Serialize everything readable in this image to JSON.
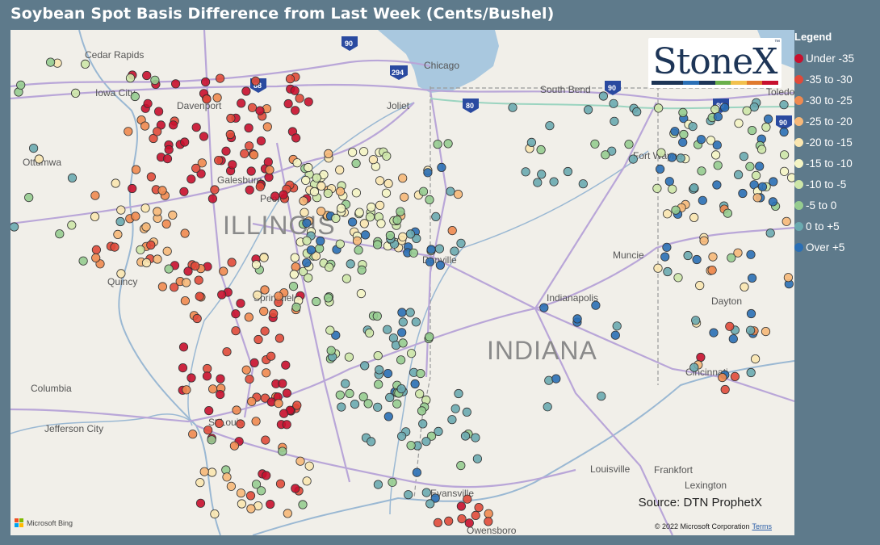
{
  "title": "Soybean Spot Basis Difference from Last Week (Cents/Bushel)",
  "legend": {
    "title": "Legend",
    "items": [
      {
        "label": "Under -35",
        "color": "#c8102e"
      },
      {
        "label": "-35 to -30",
        "color": "#e04a3a"
      },
      {
        "label": "-30 to -25",
        "color": "#ef8a50"
      },
      {
        "label": "-25 to -20",
        "color": "#f6b879"
      },
      {
        "label": "-20 to -15",
        "color": "#fae6b0"
      },
      {
        "label": "-15 to -10",
        "color": "#f4f4c4"
      },
      {
        "label": "-10 to -5",
        "color": "#cde6a8"
      },
      {
        "label": "-5 to 0",
        "color": "#96cc90"
      },
      {
        "label": "0 to +5",
        "color": "#6aaab0"
      },
      {
        "label": "Over +5",
        "color": "#2a6fb5"
      }
    ]
  },
  "logo": {
    "text": "StoneX",
    "trademark": "™",
    "bar_colors": [
      "#1d3557",
      "#1d3557",
      "#2a6fb5",
      "#1d3557",
      "#6ab04c",
      "#f2c14e",
      "#e07a2e",
      "#c8102e"
    ]
  },
  "map": {
    "states": [
      "ILLINOIS",
      "INDIANA"
    ],
    "cities": [
      "Cedar Rapids",
      "Iowa City",
      "Davenport",
      "Ottumwa",
      "Galesburg",
      "Peoria",
      "Quincy",
      "Springfield",
      "Columbia",
      "Jefferson City",
      "St Louis",
      "Chicago",
      "Joliet",
      "South Bend",
      "Fort Wayne",
      "Toledo",
      "Danville",
      "Muncie",
      "Indianapolis",
      "Dayton",
      "Cincinnati",
      "Louisville",
      "Frankfort",
      "Lexington",
      "Evansville",
      "Owensboro"
    ],
    "interstates": [
      "90",
      "294",
      "88",
      "80",
      "90",
      "80",
      "90"
    ],
    "source": "Source: DTN ProphetX",
    "copyright": "© 2022 Microsoft Corporation",
    "terms": "Terms",
    "provider": "Microsoft Bing"
  }
}
